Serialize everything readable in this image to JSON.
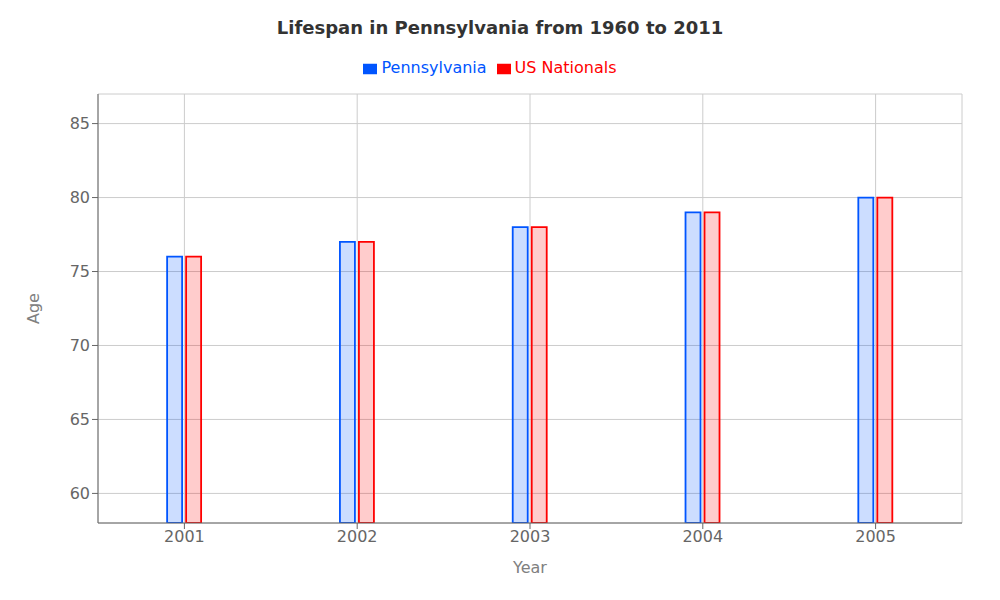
{
  "chart_data": {
    "type": "bar",
    "title": "Lifespan in Pennsylvania from 1960 to 2011",
    "xlabel": "Year",
    "ylabel": "Age",
    "categories": [
      "2001",
      "2002",
      "2003",
      "2004",
      "2005"
    ],
    "series": [
      {
        "name": "Pennsylvania",
        "color": "#0055ff",
        "values": [
          76,
          77,
          78,
          79,
          80
        ]
      },
      {
        "name": "US Nationals",
        "color": "#ff0000",
        "values": [
          76,
          77,
          78,
          79,
          80
        ]
      }
    ],
    "ylim": [
      58,
      87
    ],
    "yticks": [
      60,
      65,
      70,
      75,
      80,
      85
    ],
    "grid": true,
    "legend": "top"
  }
}
